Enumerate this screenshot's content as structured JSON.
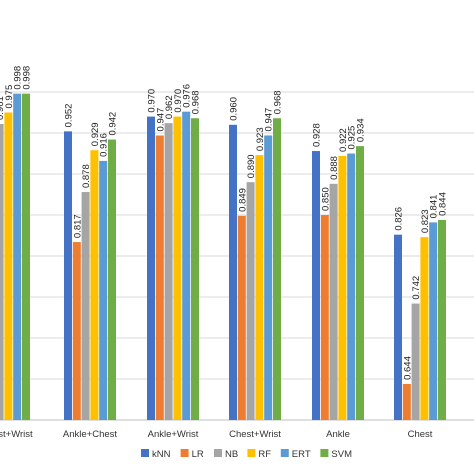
{
  "chart_data": {
    "type": "bar",
    "categories": [
      "Ankle+Chest+Wrist",
      "Ankle+Chest",
      "Ankle+Wrist",
      "Chest+Wrist",
      "Ankle",
      "Chest"
    ],
    "category_labels_visible": [
      "+Chest+Wrist",
      "Ankle+Chest",
      "Ankle+Wrist",
      "Chest+Wrist",
      "Ankle",
      "Chest"
    ],
    "series": [
      {
        "name": "kNN",
        "color": "#4472C4",
        "values": [
          0.961,
          0.952,
          0.97,
          0.96,
          0.928,
          0.826
        ]
      },
      {
        "name": "LR",
        "color": "#ED7D31",
        "values": [
          0.961,
          0.817,
          0.947,
          0.849,
          0.85,
          0.644
        ]
      },
      {
        "name": "NB",
        "color": "#A5A5A5",
        "values": [
          0.961,
          0.878,
          0.962,
          0.89,
          0.888,
          0.742
        ]
      },
      {
        "name": "RF",
        "color": "#FFC000",
        "values": [
          0.975,
          0.929,
          0.97,
          0.923,
          0.922,
          0.823
        ]
      },
      {
        "name": "ERT",
        "color": "#5B9BD5",
        "values": [
          0.998,
          0.916,
          0.976,
          0.947,
          0.925,
          0.841
        ]
      },
      {
        "name": "SVM",
        "color": "#70AD47",
        "values": [
          0.998,
          0.942,
          0.968,
          0.968,
          0.934,
          0.844
        ]
      }
    ],
    "data_labels": [
      [
        "0.961",
        "0.961",
        "0.961",
        "0.975",
        "0.998",
        "0.998"
      ],
      [
        "0.952",
        "0.817",
        "0.878",
        "0.929",
        "0.916",
        "0.942"
      ],
      [
        "0.970",
        "0.947",
        "0.962",
        "0.970",
        "0.976",
        "0.968"
      ],
      [
        "0.960",
        "0.849",
        "0.890",
        "0.923",
        "0.947",
        "0.968"
      ],
      [
        "0.928",
        "0.850",
        "0.888",
        "0.922",
        "0.925",
        "0.934"
      ],
      [
        "0.826",
        "0.644",
        "0.742",
        "0.823",
        "0.841",
        "0.844"
      ]
    ],
    "ylim": [
      0.6,
      1.0
    ],
    "grid": true,
    "legend_position": "bottom",
    "title": "",
    "xlabel": "",
    "ylabel": ""
  }
}
